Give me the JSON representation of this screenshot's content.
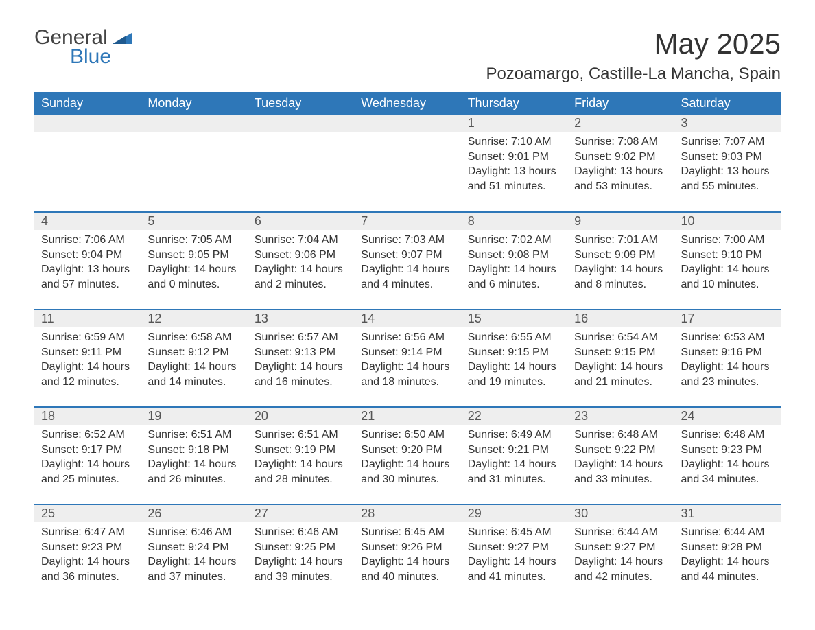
{
  "logo": {
    "text1": "General",
    "text2": "Blue",
    "triangle_color": "#2e77b8"
  },
  "header": {
    "month_title": "May 2025",
    "location": "Pozoamargo, Castille-La Mancha, Spain"
  },
  "colors": {
    "header_bg": "#2e77b8",
    "header_fg": "#ffffff",
    "daynum_bg": "#eeeeee",
    "daynum_fg": "#555555",
    "body_fg": "#333333",
    "page_bg": "#ffffff",
    "row_divider": "#2e77b8"
  },
  "typography": {
    "month_title_fontsize": 42,
    "location_fontsize": 24,
    "weekday_fontsize": 18,
    "daynum_fontsize": 18,
    "cell_fontsize": 16
  },
  "weekdays": [
    "Sunday",
    "Monday",
    "Tuesday",
    "Wednesday",
    "Thursday",
    "Friday",
    "Saturday"
  ],
  "weeks": [
    [
      {
        "empty": true
      },
      {
        "empty": true
      },
      {
        "empty": true
      },
      {
        "empty": true
      },
      {
        "day": "1",
        "sunrise": "Sunrise: 7:10 AM",
        "sunset": "Sunset: 9:01 PM",
        "daylight1": "Daylight: 13 hours",
        "daylight2": "and 51 minutes."
      },
      {
        "day": "2",
        "sunrise": "Sunrise: 7:08 AM",
        "sunset": "Sunset: 9:02 PM",
        "daylight1": "Daylight: 13 hours",
        "daylight2": "and 53 minutes."
      },
      {
        "day": "3",
        "sunrise": "Sunrise: 7:07 AM",
        "sunset": "Sunset: 9:03 PM",
        "daylight1": "Daylight: 13 hours",
        "daylight2": "and 55 minutes."
      }
    ],
    [
      {
        "day": "4",
        "sunrise": "Sunrise: 7:06 AM",
        "sunset": "Sunset: 9:04 PM",
        "daylight1": "Daylight: 13 hours",
        "daylight2": "and 57 minutes."
      },
      {
        "day": "5",
        "sunrise": "Sunrise: 7:05 AM",
        "sunset": "Sunset: 9:05 PM",
        "daylight1": "Daylight: 14 hours",
        "daylight2": "and 0 minutes."
      },
      {
        "day": "6",
        "sunrise": "Sunrise: 7:04 AM",
        "sunset": "Sunset: 9:06 PM",
        "daylight1": "Daylight: 14 hours",
        "daylight2": "and 2 minutes."
      },
      {
        "day": "7",
        "sunrise": "Sunrise: 7:03 AM",
        "sunset": "Sunset: 9:07 PM",
        "daylight1": "Daylight: 14 hours",
        "daylight2": "and 4 minutes."
      },
      {
        "day": "8",
        "sunrise": "Sunrise: 7:02 AM",
        "sunset": "Sunset: 9:08 PM",
        "daylight1": "Daylight: 14 hours",
        "daylight2": "and 6 minutes."
      },
      {
        "day": "9",
        "sunrise": "Sunrise: 7:01 AM",
        "sunset": "Sunset: 9:09 PM",
        "daylight1": "Daylight: 14 hours",
        "daylight2": "and 8 minutes."
      },
      {
        "day": "10",
        "sunrise": "Sunrise: 7:00 AM",
        "sunset": "Sunset: 9:10 PM",
        "daylight1": "Daylight: 14 hours",
        "daylight2": "and 10 minutes."
      }
    ],
    [
      {
        "day": "11",
        "sunrise": "Sunrise: 6:59 AM",
        "sunset": "Sunset: 9:11 PM",
        "daylight1": "Daylight: 14 hours",
        "daylight2": "and 12 minutes."
      },
      {
        "day": "12",
        "sunrise": "Sunrise: 6:58 AM",
        "sunset": "Sunset: 9:12 PM",
        "daylight1": "Daylight: 14 hours",
        "daylight2": "and 14 minutes."
      },
      {
        "day": "13",
        "sunrise": "Sunrise: 6:57 AM",
        "sunset": "Sunset: 9:13 PM",
        "daylight1": "Daylight: 14 hours",
        "daylight2": "and 16 minutes."
      },
      {
        "day": "14",
        "sunrise": "Sunrise: 6:56 AM",
        "sunset": "Sunset: 9:14 PM",
        "daylight1": "Daylight: 14 hours",
        "daylight2": "and 18 minutes."
      },
      {
        "day": "15",
        "sunrise": "Sunrise: 6:55 AM",
        "sunset": "Sunset: 9:15 PM",
        "daylight1": "Daylight: 14 hours",
        "daylight2": "and 19 minutes."
      },
      {
        "day": "16",
        "sunrise": "Sunrise: 6:54 AM",
        "sunset": "Sunset: 9:15 PM",
        "daylight1": "Daylight: 14 hours",
        "daylight2": "and 21 minutes."
      },
      {
        "day": "17",
        "sunrise": "Sunrise: 6:53 AM",
        "sunset": "Sunset: 9:16 PM",
        "daylight1": "Daylight: 14 hours",
        "daylight2": "and 23 minutes."
      }
    ],
    [
      {
        "day": "18",
        "sunrise": "Sunrise: 6:52 AM",
        "sunset": "Sunset: 9:17 PM",
        "daylight1": "Daylight: 14 hours",
        "daylight2": "and 25 minutes."
      },
      {
        "day": "19",
        "sunrise": "Sunrise: 6:51 AM",
        "sunset": "Sunset: 9:18 PM",
        "daylight1": "Daylight: 14 hours",
        "daylight2": "and 26 minutes."
      },
      {
        "day": "20",
        "sunrise": "Sunrise: 6:51 AM",
        "sunset": "Sunset: 9:19 PM",
        "daylight1": "Daylight: 14 hours",
        "daylight2": "and 28 minutes."
      },
      {
        "day": "21",
        "sunrise": "Sunrise: 6:50 AM",
        "sunset": "Sunset: 9:20 PM",
        "daylight1": "Daylight: 14 hours",
        "daylight2": "and 30 minutes."
      },
      {
        "day": "22",
        "sunrise": "Sunrise: 6:49 AM",
        "sunset": "Sunset: 9:21 PM",
        "daylight1": "Daylight: 14 hours",
        "daylight2": "and 31 minutes."
      },
      {
        "day": "23",
        "sunrise": "Sunrise: 6:48 AM",
        "sunset": "Sunset: 9:22 PM",
        "daylight1": "Daylight: 14 hours",
        "daylight2": "and 33 minutes."
      },
      {
        "day": "24",
        "sunrise": "Sunrise: 6:48 AM",
        "sunset": "Sunset: 9:23 PM",
        "daylight1": "Daylight: 14 hours",
        "daylight2": "and 34 minutes."
      }
    ],
    [
      {
        "day": "25",
        "sunrise": "Sunrise: 6:47 AM",
        "sunset": "Sunset: 9:23 PM",
        "daylight1": "Daylight: 14 hours",
        "daylight2": "and 36 minutes."
      },
      {
        "day": "26",
        "sunrise": "Sunrise: 6:46 AM",
        "sunset": "Sunset: 9:24 PM",
        "daylight1": "Daylight: 14 hours",
        "daylight2": "and 37 minutes."
      },
      {
        "day": "27",
        "sunrise": "Sunrise: 6:46 AM",
        "sunset": "Sunset: 9:25 PM",
        "daylight1": "Daylight: 14 hours",
        "daylight2": "and 39 minutes."
      },
      {
        "day": "28",
        "sunrise": "Sunrise: 6:45 AM",
        "sunset": "Sunset: 9:26 PM",
        "daylight1": "Daylight: 14 hours",
        "daylight2": "and 40 minutes."
      },
      {
        "day": "29",
        "sunrise": "Sunrise: 6:45 AM",
        "sunset": "Sunset: 9:27 PM",
        "daylight1": "Daylight: 14 hours",
        "daylight2": "and 41 minutes."
      },
      {
        "day": "30",
        "sunrise": "Sunrise: 6:44 AM",
        "sunset": "Sunset: 9:27 PM",
        "daylight1": "Daylight: 14 hours",
        "daylight2": "and 42 minutes."
      },
      {
        "day": "31",
        "sunrise": "Sunrise: 6:44 AM",
        "sunset": "Sunset: 9:28 PM",
        "daylight1": "Daylight: 14 hours",
        "daylight2": "and 44 minutes."
      }
    ]
  ]
}
